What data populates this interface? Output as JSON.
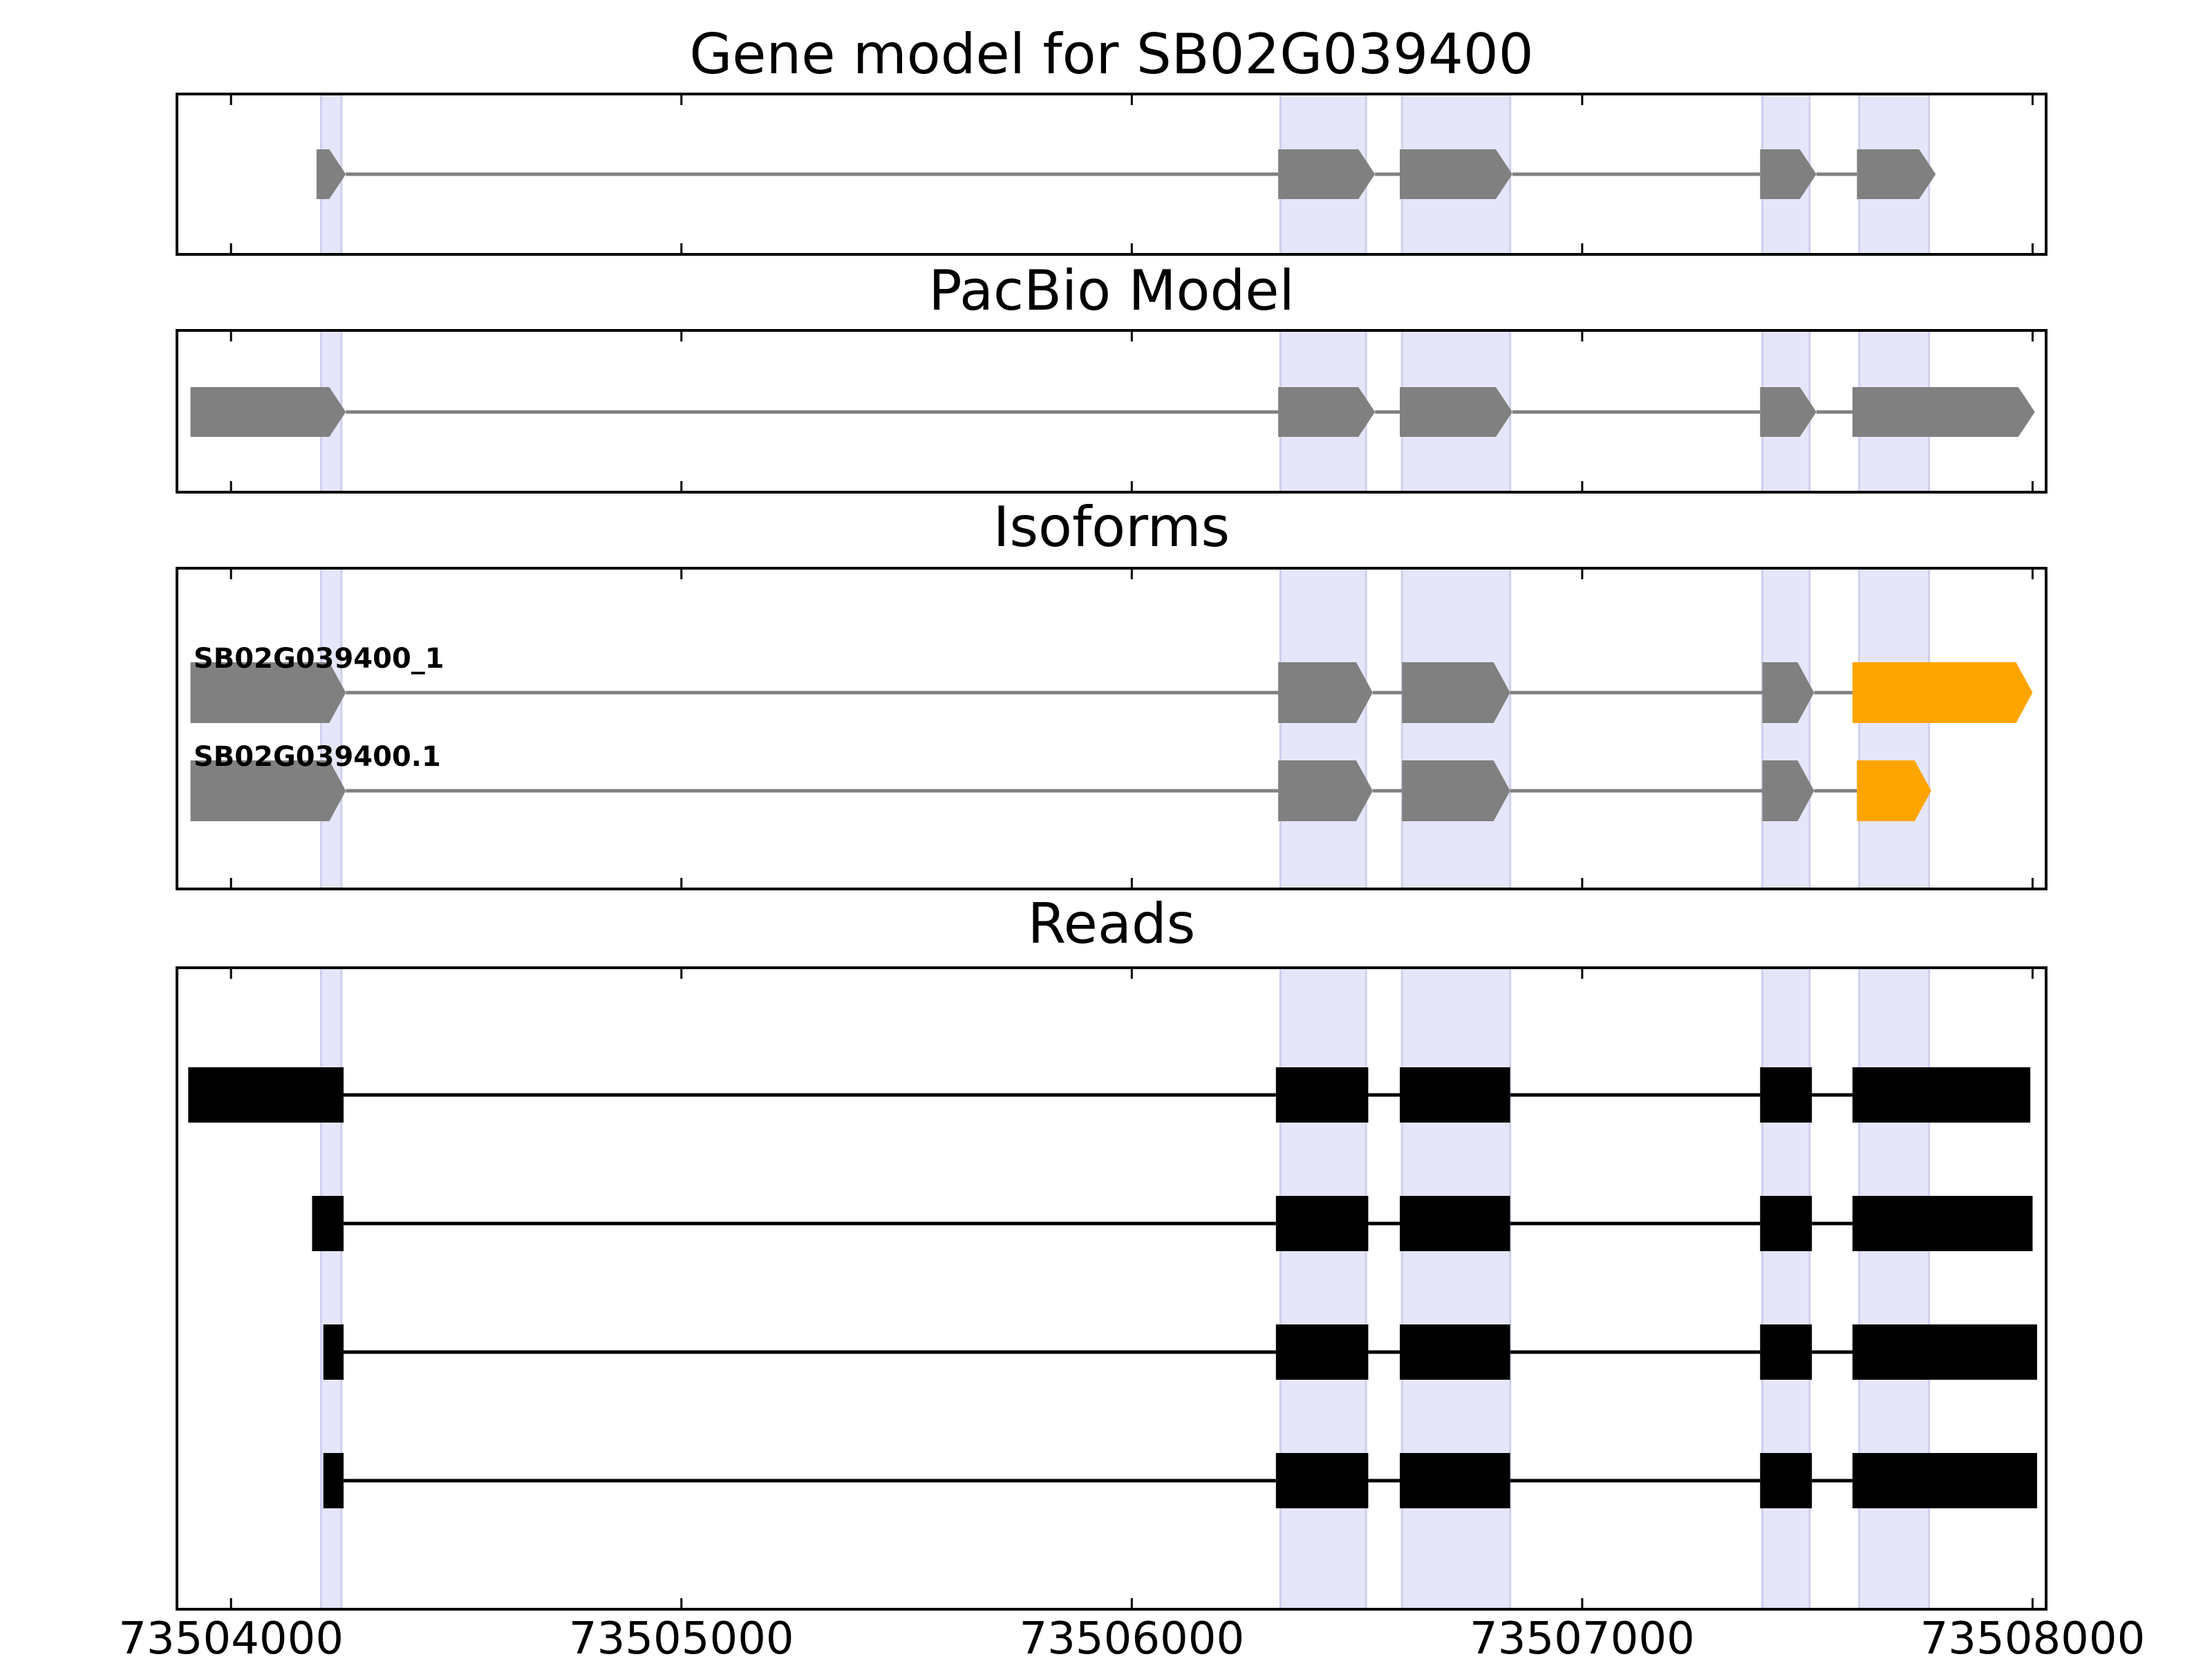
{
  "chart_data": {
    "type": "gene-structure",
    "xlim": [
      73503880,
      73508030
    ],
    "x_ticks": [
      "73504000",
      "73505000",
      "73506000",
      "73507000",
      "73508000"
    ],
    "x_tick_values": [
      73504000,
      73505000,
      73506000,
      73507000,
      73508000
    ],
    "highlight_color": "#e6e6fa",
    "highlight_regions": [
      [
        73504200,
        73504245
      ],
      [
        73506330,
        73506520
      ],
      [
        73506600,
        73506840
      ],
      [
        73507400,
        73507505
      ],
      [
        73507615,
        73507770
      ]
    ],
    "colors": {
      "exon": "#808080",
      "intron": "#808080",
      "alt_exon": "#ffa500",
      "read": "#000000"
    },
    "panels": [
      {
        "title": "Gene model for SB02G039400",
        "tracks": [
          {
            "label": "",
            "exons": [
              [
                73504190,
                73504255,
                "gray"
              ],
              [
                73506325,
                73506540,
                "gray"
              ],
              [
                73506595,
                73506845,
                "gray"
              ],
              [
                73507395,
                73507520,
                "gray"
              ],
              [
                73507610,
                73507785,
                "gray"
              ]
            ]
          }
        ]
      },
      {
        "title": "PacBio Model",
        "tracks": [
          {
            "label": "",
            "exons": [
              [
                73503910,
                73504255,
                "gray"
              ],
              [
                73506325,
                73506540,
                "gray"
              ],
              [
                73506595,
                73506845,
                "gray"
              ],
              [
                73507395,
                73507520,
                "gray"
              ],
              [
                73507600,
                73508005,
                "gray"
              ]
            ]
          }
        ]
      },
      {
        "title": "Isoforms",
        "tracks": [
          {
            "label": "SB02G039400_1",
            "exons": [
              [
                73503910,
                73504255,
                "gray"
              ],
              [
                73506325,
                73506535,
                "gray"
              ],
              [
                73506600,
                73506840,
                "gray"
              ],
              [
                73507400,
                73507515,
                "gray"
              ],
              [
                73507600,
                73508000,
                "orange"
              ]
            ]
          },
          {
            "label": "SB02G039400.1",
            "exons": [
              [
                73503910,
                73504255,
                "gray"
              ],
              [
                73506325,
                73506535,
                "gray"
              ],
              [
                73506600,
                73506840,
                "gray"
              ],
              [
                73507400,
                73507515,
                "gray"
              ],
              [
                73507610,
                73507775,
                "orange"
              ]
            ]
          }
        ]
      },
      {
        "title": "Reads",
        "tracks": [
          {
            "label": "",
            "exons": [
              [
                73503905,
                73504250
              ],
              [
                73506320,
                73506525
              ],
              [
                73506595,
                73506840
              ],
              [
                73507395,
                73507510
              ],
              [
                73507600,
                73507995
              ]
            ]
          },
          {
            "label": "",
            "exons": [
              [
                73504180,
                73504250
              ],
              [
                73506320,
                73506525
              ],
              [
                73506595,
                73506840
              ],
              [
                73507395,
                73507510
              ],
              [
                73507600,
                73508000
              ]
            ]
          },
          {
            "label": "",
            "exons": [
              [
                73504205,
                73504250
              ],
              [
                73506320,
                73506525
              ],
              [
                73506595,
                73506840
              ],
              [
                73507395,
                73507510
              ],
              [
                73507600,
                73508010
              ]
            ]
          },
          {
            "label": "",
            "exons": [
              [
                73504205,
                73504250
              ],
              [
                73506320,
                73506525
              ],
              [
                73506595,
                73506840
              ],
              [
                73507395,
                73507510
              ],
              [
                73507600,
                73508010
              ]
            ]
          }
        ]
      }
    ]
  }
}
